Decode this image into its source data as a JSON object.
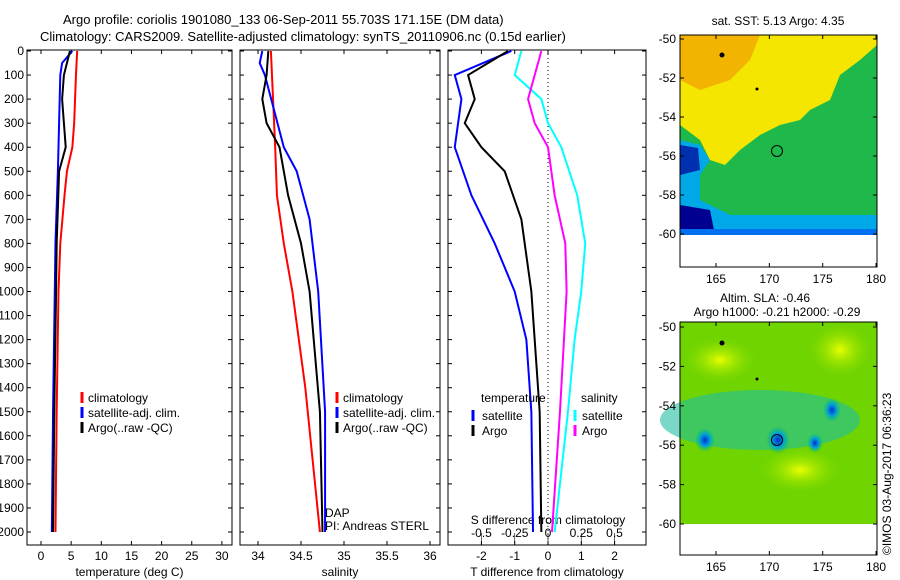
{
  "title_line1": "Argo profile: coriolis 1901080_133 06-Sep-2011 55.703S 171.15E (DM data)",
  "title_line2": "Climatology: CARS2009. Satellite-adjusted climatology: synTS_20110906.nc (0.15d earlier)",
  "footer_stamp": "©IMOS 03-Aug-2017 06:36:23",
  "colors": {
    "climatology": "#ff0000",
    "satellite": "#0000ff",
    "argo": "#000000",
    "s_satellite": "#00ffff",
    "s_argo": "#ff00ff"
  },
  "chart_data": [
    {
      "type": "line",
      "name": "temperature",
      "xlabel": "temperature (deg C)",
      "xlim": [
        -1.5,
        31.5
      ],
      "ylim": [
        2050,
        0
      ],
      "xticks": [
        0,
        5,
        10,
        15,
        20,
        25,
        30
      ],
      "yticks": [
        0,
        100,
        200,
        300,
        400,
        500,
        600,
        700,
        800,
        900,
        1000,
        1100,
        1200,
        1300,
        1400,
        1500,
        1600,
        1700,
        1800,
        1900,
        2000
      ],
      "legend": [
        "climatology",
        "satellite-adj. clim.",
        "Argo(..raw -QC)"
      ],
      "series": [
        {
          "name": "climatology",
          "color": "#ff0000",
          "depth": [
            0,
            100,
            300,
            400,
            500,
            600,
            800,
            1000,
            1500,
            2000
          ],
          "values": [
            6,
            5.8,
            5.5,
            5.2,
            4.3,
            3.9,
            3.2,
            2.9,
            2.6,
            2.4
          ]
        },
        {
          "name": "satellite-adj. clim.",
          "color": "#0000ff",
          "depth": [
            0,
            50,
            100,
            300,
            500,
            800,
            1500,
            2000
          ],
          "values": [
            5.2,
            3.5,
            3.2,
            3.0,
            2.8,
            2.4,
            2.0,
            1.8
          ]
        },
        {
          "name": "Argo(..raw -QC)",
          "color": "#000000",
          "depth": [
            0,
            100,
            200,
            400,
            500,
            800,
            1000,
            1500,
            2000
          ],
          "values": [
            4.8,
            3.8,
            3.5,
            4.1,
            3.0,
            2.6,
            2.5,
            2.2,
            2.0
          ]
        }
      ]
    },
    {
      "type": "line",
      "name": "salinity",
      "xlabel": "salinity",
      "xlim": [
        33.8,
        36.1
      ],
      "ylim": [
        2050,
        0
      ],
      "xticks": [
        34,
        34.5,
        35,
        35.5,
        36
      ],
      "legend": [
        "climatology",
        "satellite-adj. clim.",
        "Argo(..raw -QC)"
      ],
      "annotation": [
        "DAP",
        "PI: Andreas STERL"
      ],
      "series": [
        {
          "name": "climatology",
          "color": "#ff0000",
          "depth": [
            0,
            400,
            600,
            800,
            1000,
            1400,
            2000
          ],
          "values": [
            34.15,
            34.2,
            34.22,
            34.3,
            34.4,
            34.55,
            34.72
          ]
        },
        {
          "name": "satellite-adj. clim.",
          "color": "#0000ff",
          "depth": [
            0,
            50,
            100,
            400,
            500,
            700,
            1000,
            1500,
            2000
          ],
          "values": [
            34.05,
            34.02,
            34.08,
            34.3,
            34.45,
            34.6,
            34.7,
            34.78,
            34.78
          ]
        },
        {
          "name": "Argo(..raw -QC)",
          "color": "#000000",
          "depth": [
            0,
            100,
            200,
            300,
            400,
            600,
            800,
            1000,
            1500,
            2000
          ],
          "values": [
            34.12,
            34.1,
            34.05,
            34.1,
            34.25,
            34.35,
            34.5,
            34.6,
            34.72,
            34.75
          ]
        }
      ]
    },
    {
      "type": "line",
      "name": "difference",
      "xlabel": "T difference from climatology",
      "x2label": "S difference from climatology",
      "xlim": [
        -3,
        3
      ],
      "x2lim": [
        -0.75,
        0.75
      ],
      "ylim": [
        2050,
        0
      ],
      "xticks": [
        -2,
        -1,
        0,
        1,
        2
      ],
      "x2ticks": [
        -0.5,
        -0.25,
        0,
        0.25,
        0.5
      ],
      "legend_t": {
        "title": "temperature",
        "items": [
          "satellite",
          "Argo"
        ]
      },
      "legend_s": {
        "title": "salinity",
        "items": [
          "satellite",
          "Argo"
        ]
      },
      "series": [
        {
          "name": "T satellite",
          "axis": "T",
          "color": "#0000ff",
          "depth": [
            0,
            100,
            200,
            400,
            600,
            800,
            1000,
            1200,
            1500,
            2000
          ],
          "values": [
            -1.1,
            -2.8,
            -2.6,
            -2.8,
            -2.3,
            -1.6,
            -1.0,
            -0.65,
            -0.5,
            -0.45
          ]
        },
        {
          "name": "T Argo",
          "axis": "T",
          "color": "#000000",
          "depth": [
            0,
            100,
            200,
            300,
            400,
            500,
            700,
            1000,
            1500,
            2000
          ],
          "values": [
            -1.2,
            -2.4,
            -2.2,
            -2.5,
            -2.0,
            -1.3,
            -0.8,
            -0.5,
            -0.25,
            -0.2
          ]
        },
        {
          "name": "S satellite",
          "axis": "S",
          "color": "#00ffff",
          "depth": [
            0,
            100,
            200,
            300,
            400,
            600,
            800,
            1000,
            1200,
            1500,
            2000
          ],
          "values": [
            -0.2,
            -0.25,
            -0.05,
            0,
            0.1,
            0.22,
            0.28,
            0.25,
            0.2,
            0.15,
            0.05
          ]
        },
        {
          "name": "S Argo",
          "axis": "S",
          "color": "#ff00ff",
          "depth": [
            0,
            200,
            300,
            400,
            600,
            800,
            1000,
            1500,
            2000
          ],
          "values": [
            -0.05,
            -0.15,
            -0.1,
            0,
            0.05,
            0.13,
            0.14,
            0.09,
            0.03
          ]
        }
      ]
    },
    {
      "type": "heatmap",
      "name": "sst-map",
      "title": "sat. SST: 5.13 Argo: 4.35",
      "lonticks": [
        165,
        170,
        175,
        180
      ],
      "latticks": [
        -50,
        -52,
        -54,
        -56,
        -58,
        -60
      ],
      "float_position": [
        171.15,
        -55.7
      ]
    },
    {
      "type": "heatmap",
      "name": "sla-map",
      "title1": "Altim. SLA: -0.46",
      "title2": "Argo h1000: -0.21 h2000: -0.29",
      "lonticks": [
        165,
        170,
        175,
        180
      ],
      "latticks": [
        -50,
        -52,
        -54,
        -56,
        -58,
        -60
      ],
      "float_position": [
        171.15,
        -55.7
      ]
    }
  ]
}
